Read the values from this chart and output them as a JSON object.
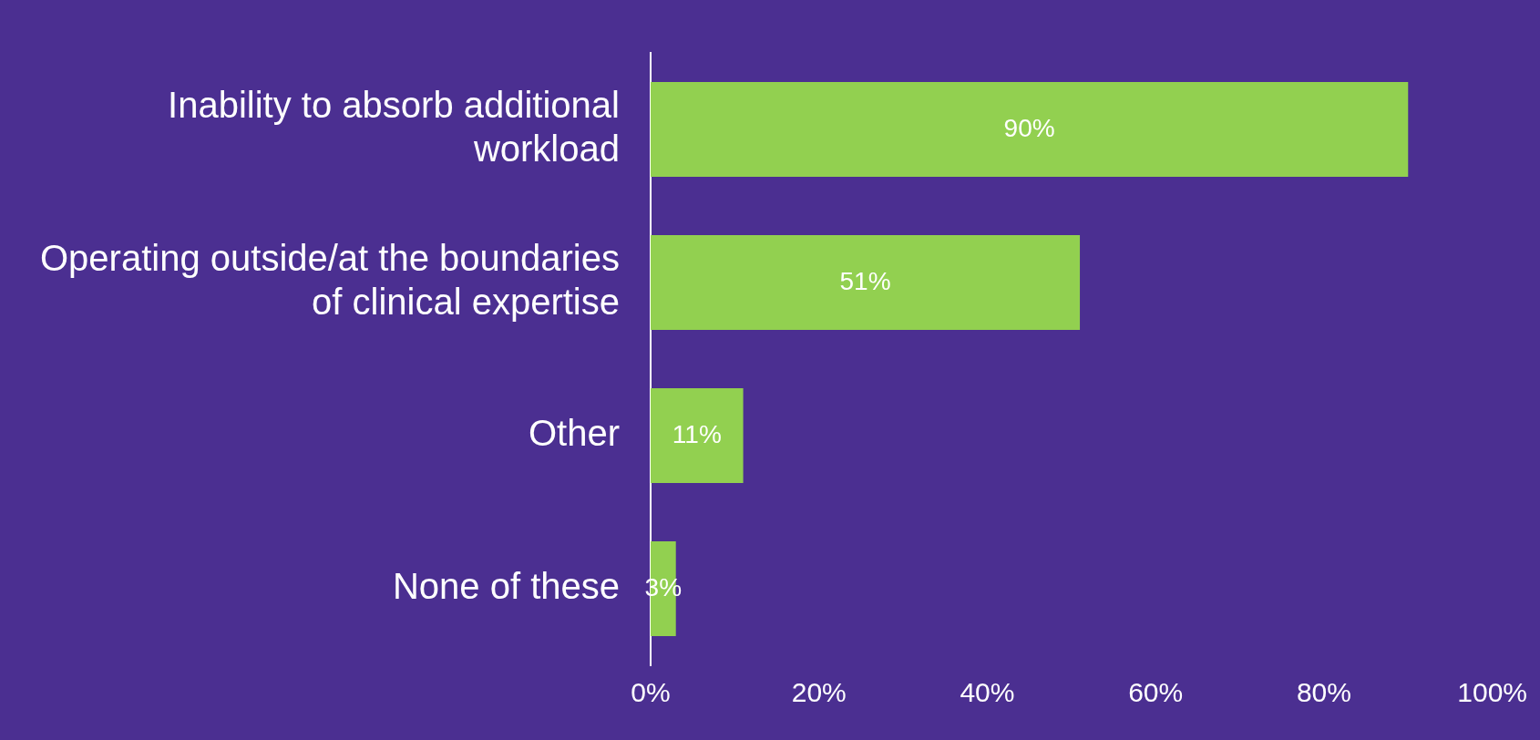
{
  "chart_data": {
    "type": "bar",
    "orientation": "horizontal",
    "categories": [
      "Inability to absorb additional workload",
      "Operating outside/at the boundaries of clinical expertise",
      "Other",
      "None of these"
    ],
    "values": [
      90,
      51,
      11,
      3
    ],
    "value_labels": [
      "90%",
      "51%",
      "11%",
      "3%"
    ],
    "color": "#92d050",
    "xlim": [
      0,
      100
    ],
    "xticks": [
      {
        "value": 0,
        "label": "0%"
      },
      {
        "value": 20,
        "label": "20%"
      },
      {
        "value": 40,
        "label": "40%"
      },
      {
        "value": 60,
        "label": "60%"
      },
      {
        "value": 80,
        "label": "80%"
      },
      {
        "value": 100,
        "label": "100%"
      }
    ],
    "grid": false,
    "legend": false
  }
}
